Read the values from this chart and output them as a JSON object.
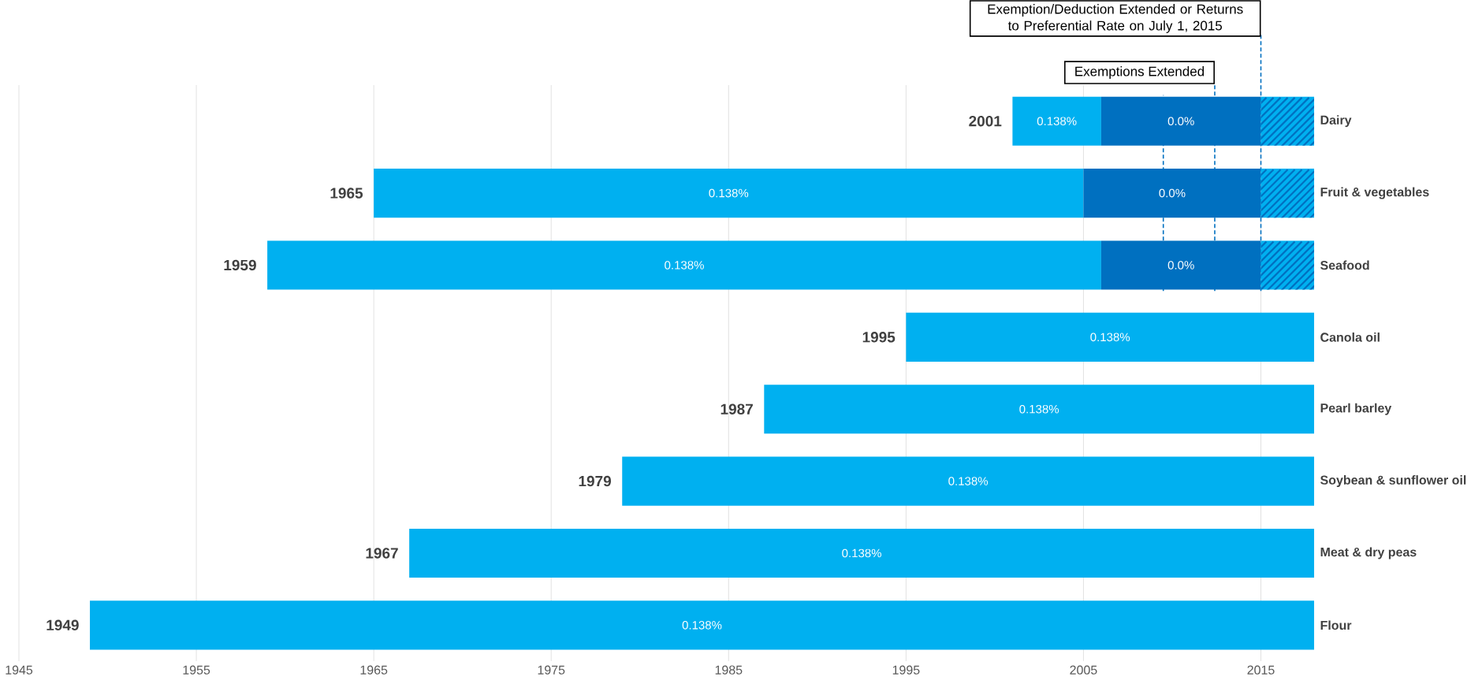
{
  "chart_data": {
    "type": "bar",
    "orientation": "horizontal",
    "categories": [
      "Dairy",
      "Fruit & vegetables",
      "Seafood",
      "Canola oil",
      "Pearl barley",
      "Soybean & sunflower oil",
      "Meat & dry peas",
      "Flour"
    ],
    "series": [
      {
        "color": "#00b0f0",
        "base": [
          2001,
          1965,
          1959,
          1995,
          1987,
          1979,
          1967,
          1949
        ],
        "values": [
          5,
          40,
          47,
          23,
          31,
          39,
          51,
          69
        ]
      },
      {
        "color": "#0070c0",
        "base": [
          2006,
          2005,
          2006,
          null,
          null,
          null,
          null,
          null
        ],
        "values": [
          9,
          10,
          9,
          null,
          null,
          null,
          null,
          null
        ]
      },
      {
        "color": "#00b0f0",
        "base": [
          2015,
          2015,
          2015,
          null,
          null,
          null,
          null,
          null
        ],
        "values": [
          3,
          3,
          3,
          null,
          null,
          null,
          null,
          null
        ]
      }
    ],
    "xlim": [
      1945,
      2018
    ],
    "xticks": [
      1945,
      1955,
      1965,
      1975,
      1985,
      1995,
      2005,
      2015
    ],
    "grid": "x",
    "ref_lines": [
      {
        "axis": "x",
        "value": 2009.5,
        "color": "#0070c0",
        "line_style": "dashed"
      },
      {
        "axis": "x",
        "value": 2012.4,
        "label": "Exemptions Extended",
        "color": "#0070c0",
        "line_style": "dashed"
      },
      {
        "axis": "x",
        "value": 2015,
        "label": "Exemption/Deduction Extended or Returns to Preferential Rate on July 1, 2015",
        "color": "#0070c0",
        "line_style": "dashed"
      }
    ],
    "annotations": [
      "2001",
      "1965",
      "1959",
      "1995",
      "1987",
      "1979",
      "1967",
      "1949",
      "0.138%",
      "0.138%",
      "0.138%",
      "0.138%",
      "0.138%",
      "0.138%",
      "0.138%",
      "0.138%",
      "0.0%",
      "0.0%",
      "0.0%"
    ]
  }
}
